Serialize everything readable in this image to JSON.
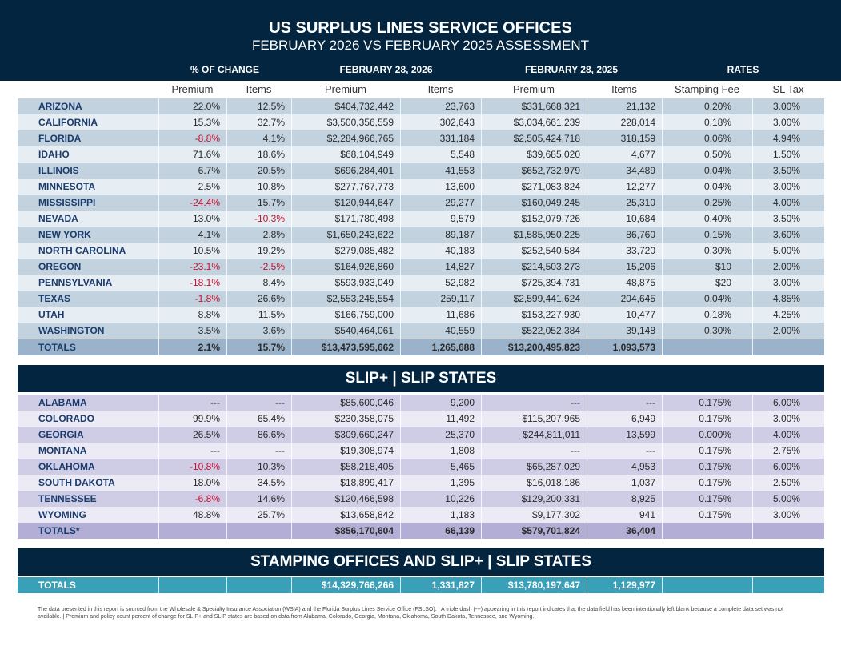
{
  "header": {
    "title": "US SURPLUS LINES SERVICE OFFICES",
    "subtitle": "FEBRUARY 2026 VS FEBRUARY 2025 ASSESSMENT"
  },
  "groups": {
    "pct": "% OF CHANGE",
    "y2026": "FEBRUARY 28, 2026",
    "y2025": "FEBRUARY 28, 2025",
    "rates": "RATES"
  },
  "subheaders": {
    "premium": "Premium",
    "items": "Items",
    "premium2": "Premium",
    "items2": "Items",
    "premium3": "Premium",
    "items3": "Items",
    "fee": "Stamping Fee",
    "tax": "SL Tax"
  },
  "colors": {
    "navy": "#03253f",
    "negative": "#c8102e",
    "teal": "#3aa0b8"
  },
  "stamping": {
    "rows": [
      [
        "ARIZONA",
        "22.0%",
        "12.5%",
        "$404,732,442",
        "23,763",
        "$331,668,321",
        "21,132",
        "0.20%",
        "3.00%"
      ],
      [
        "CALIFORNIA",
        "15.3%",
        "32.7%",
        "$3,500,356,559",
        "302,643",
        "$3,034,661,239",
        "228,014",
        "0.18%",
        "3.00%"
      ],
      [
        "FLORIDA",
        "-8.8%",
        "4.1%",
        "$2,284,966,765",
        "331,184",
        "$2,505,424,718",
        "318,159",
        "0.06%",
        "4.94%"
      ],
      [
        "IDAHO",
        "71.6%",
        "18.6%",
        "$68,104,949",
        "5,548",
        "$39,685,020",
        "4,677",
        "0.50%",
        "1.50%"
      ],
      [
        "ILLINOIS",
        "6.7%",
        "20.5%",
        "$696,284,401",
        "41,553",
        "$652,732,979",
        "34,489",
        "0.04%",
        "3.50%"
      ],
      [
        "MINNESOTA",
        "2.5%",
        "10.8%",
        "$277,767,773",
        "13,600",
        "$271,083,824",
        "12,277",
        "0.04%",
        "3.00%"
      ],
      [
        "MISSISSIPPI",
        "-24.4%",
        "15.7%",
        "$120,944,647",
        "29,277",
        "$160,049,245",
        "25,310",
        "0.25%",
        "4.00%"
      ],
      [
        "NEVADA",
        "13.0%",
        "-10.3%",
        "$171,780,498",
        "9,579",
        "$152,079,726",
        "10,684",
        "0.40%",
        "3.50%"
      ],
      [
        "NEW YORK",
        "4.1%",
        "2.8%",
        "$1,650,243,622",
        "89,187",
        "$1,585,950,225",
        "86,760",
        "0.15%",
        "3.60%"
      ],
      [
        "NORTH CAROLINA",
        "10.5%",
        "19.2%",
        "$279,085,482",
        "40,183",
        "$252,540,584",
        "33,720",
        "0.30%",
        "5.00%"
      ],
      [
        "OREGON",
        "-23.1%",
        "-2.5%",
        "$164,926,860",
        "14,827",
        "$214,503,273",
        "15,206",
        "$10",
        "2.00%"
      ],
      [
        "PENNSYLVANIA",
        "-18.1%",
        "8.4%",
        "$593,933,049",
        "52,982",
        "$725,394,731",
        "48,875",
        "$20",
        "3.00%"
      ],
      [
        "TEXAS",
        "-1.8%",
        "26.6%",
        "$2,553,245,554",
        "259,117",
        "$2,599,441,624",
        "204,645",
        "0.04%",
        "4.85%"
      ],
      [
        "UTAH",
        "8.8%",
        "11.5%",
        "$166,759,000",
        "11,686",
        "$153,227,930",
        "10,477",
        "0.18%",
        "4.25%"
      ],
      [
        "WASHINGTON",
        "3.5%",
        "3.6%",
        "$540,464,061",
        "40,559",
        "$522,052,384",
        "39,148",
        "0.30%",
        "2.00%"
      ]
    ],
    "totals": [
      "TOTALS",
      "2.1%",
      "15.7%",
      "$13,473,595,662",
      "1,265,688",
      "$13,200,495,823",
      "1,093,573",
      "",
      ""
    ]
  },
  "slip": {
    "banner": "SLIP+ | SLIP STATES",
    "rows": [
      [
        "ALABAMA",
        "---",
        "---",
        "$85,600,046",
        "9,200",
        "---",
        "---",
        "0.175%",
        "6.00%"
      ],
      [
        "COLORADO",
        "99.9%",
        "65.4%",
        "$230,358,075",
        "11,492",
        "$115,207,965",
        "6,949",
        "0.175%",
        "3.00%"
      ],
      [
        "GEORGIA",
        "26.5%",
        "86.6%",
        "$309,660,247",
        "25,370",
        "$244,811,011",
        "13,599",
        "0.000%",
        "4.00%"
      ],
      [
        "MONTANA",
        "---",
        "---",
        "$19,308,974",
        "1,808",
        "---",
        "---",
        "0.175%",
        "2.75%"
      ],
      [
        "OKLAHOMA",
        "-10.8%",
        "10.3%",
        "$58,218,405",
        "5,465",
        "$65,287,029",
        "4,953",
        "0.175%",
        "6.00%"
      ],
      [
        "SOUTH DAKOTA",
        "18.0%",
        "34.5%",
        "$18,899,417",
        "1,395",
        "$16,018,186",
        "1,037",
        "0.175%",
        "2.50%"
      ],
      [
        "TENNESSEE",
        "-6.8%",
        "14.6%",
        "$120,466,598",
        "10,226",
        "$129,200,331",
        "8,925",
        "0.175%",
        "5.00%"
      ],
      [
        "WYOMING",
        "48.8%",
        "25.7%",
        "$13,658,842",
        "1,183",
        "$9,177,302",
        "941",
        "0.175%",
        "3.00%"
      ]
    ],
    "totals": [
      "TOTALS*",
      "",
      "",
      "$856,170,604",
      "66,139",
      "$579,701,824",
      "36,404",
      "",
      ""
    ]
  },
  "combined": {
    "banner": "STAMPING OFFICES AND SLIP+ | SLIP STATES",
    "totals": [
      "TOTALS",
      "",
      "",
      "$14,329,766,266",
      "1,331,827",
      "$13,780,197,647",
      "1,129,977",
      "",
      ""
    ]
  },
  "footer": "The data presented in this report is sourced from the Wholesale & Specialty Insurance Association (WSIA) and the Florida Surplus Lines Service Office (FSLSO). | A triple dash (---) appearing in this report indicates that the data field has been intentionally left blank because a complete data set was not available. | Premium and policy count percent of change for SLIP+ and SLIP states are based on data from Alabama, Colorado, Georgia, Montana, Oklahoma, South Dakota, Tennessee, and Wyoming."
}
